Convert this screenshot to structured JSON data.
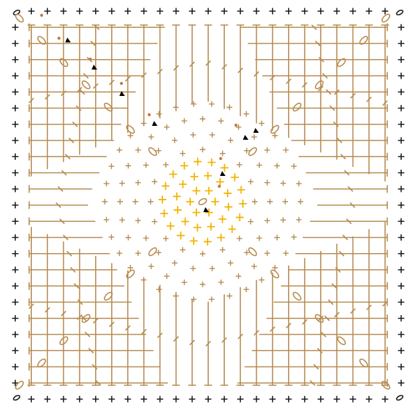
{
  "diagram": {
    "kind": "crochet-granny-square-chart",
    "rounds": 14,
    "symbols": {
      "border": "single-crochet",
      "corner": "chain",
      "field": "double-crochet",
      "center": "single-crochet",
      "marker": "round-start-triangle"
    },
    "colors": {
      "outer_rounds": "#b58a4e",
      "center_rounds": "#f0b400",
      "border_stitch": "#1a1a1a",
      "round_marker": "#000000",
      "join_dot": "#c87a3c"
    }
  }
}
